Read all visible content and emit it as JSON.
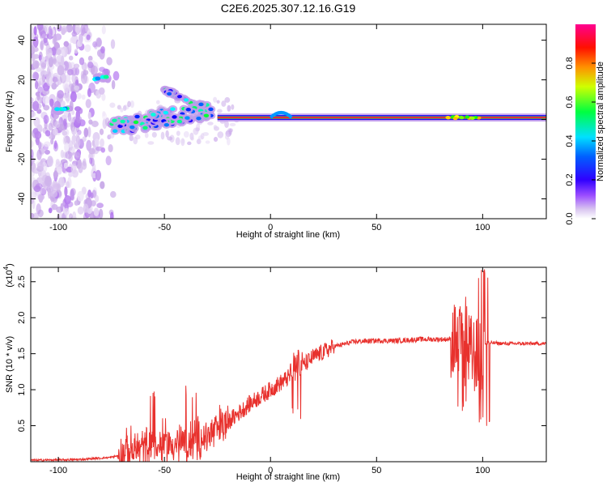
{
  "title": "C2E6.2025.307.12.16.G19",
  "chart_data": [
    {
      "type": "heatmap",
      "name": "spectrogram",
      "xlabel": "Height of straight line (km)",
      "ylabel": "Frequency (Hz)",
      "xlim": [
        -113,
        130
      ],
      "ylim": [
        -50,
        48
      ],
      "xticks": [
        -100,
        -50,
        0,
        50,
        100
      ],
      "yticks": [
        -40,
        -20,
        0,
        20,
        40
      ],
      "colorbar": {
        "label": "Normalized spectral amplitude",
        "range": [
          0,
          1
        ],
        "ticks": [
          0.0,
          0.2,
          0.4,
          0.6,
          0.8
        ],
        "tick_labels": [
          "0.0",
          "0.2",
          "0.4",
          "0.6",
          "0.8"
        ],
        "colors": [
          "#ffffff",
          "#c8a8e8",
          "#8000ff",
          "#0000ff",
          "#00ffff",
          "#00ff00",
          "#ffff00",
          "#ff8000",
          "#ff0000",
          "#ff0080"
        ]
      },
      "features": [
        {
          "label": "diffuse noise",
          "height_range": [
            -113,
            -72
          ],
          "freq_range": [
            -50,
            48
          ],
          "amplitude": 0.1
        },
        {
          "label": "blob",
          "height": -98,
          "freq": 5,
          "amplitude": 0.35
        },
        {
          "label": "blob",
          "height": -80,
          "freq": 21,
          "amplitude": 0.35
        },
        {
          "label": "descending track",
          "height_range": [
            -50,
            -28
          ],
          "freq_range": [
            15,
            3
          ],
          "amplitude": 0.3
        },
        {
          "label": "dispersed trace",
          "height_range": [
            -75,
            -28
          ],
          "freq_range": [
            -4,
            5
          ],
          "amplitude": 0.3
        },
        {
          "label": "steady line",
          "height_range": [
            -25,
            130
          ],
          "freq": 1,
          "amplitude": 0.95
        }
      ]
    },
    {
      "type": "line",
      "name": "snr",
      "xlabel": "Height of straight line (km)",
      "ylabel": "SNR (10 * v/v)",
      "y_multiplier_label": "(x10",
      "y_multiplier_exp": "4",
      "y_multiplier_close": ")",
      "xlim": [
        -113,
        130
      ],
      "ylim": [
        0,
        2.7
      ],
      "xticks": [
        -100,
        -50,
        0,
        50,
        100
      ],
      "yticks": [
        0.5,
        1.0,
        1.5,
        2.0,
        2.5
      ],
      "ytick_labels": [
        "0.5",
        "1.0",
        "1.5",
        "2.0",
        "2.5"
      ],
      "color": "#e8312d",
      "envelope": {
        "x": [
          -113,
          -90,
          -75,
          -70,
          -60,
          -50,
          -40,
          -30,
          -20,
          -10,
          0,
          10,
          20,
          30,
          40,
          50,
          60,
          70,
          80,
          85,
          90,
          95,
          100,
          101,
          105,
          110,
          120,
          130
        ],
        "baseline": [
          0.02,
          0.03,
          0.06,
          0.1,
          0.2,
          0.25,
          0.25,
          0.35,
          0.55,
          0.8,
          1.0,
          1.2,
          1.45,
          1.6,
          1.67,
          1.68,
          1.68,
          1.7,
          1.7,
          1.7,
          1.6,
          1.5,
          1.4,
          1.65,
          1.65,
          1.64,
          1.64,
          1.64
        ]
      },
      "spikes": [
        {
          "x": -55,
          "peak": 1.02,
          "low": 0.05
        },
        {
          "x": -38,
          "peak": 1.08,
          "low": 0.05
        },
        {
          "x": 12,
          "peak": 1.55,
          "low": 0.55
        },
        {
          "x": 90,
          "peak": 2.3,
          "low": 0.7
        },
        {
          "x": 101,
          "peak": 2.7,
          "low": 0.45
        }
      ]
    }
  ]
}
